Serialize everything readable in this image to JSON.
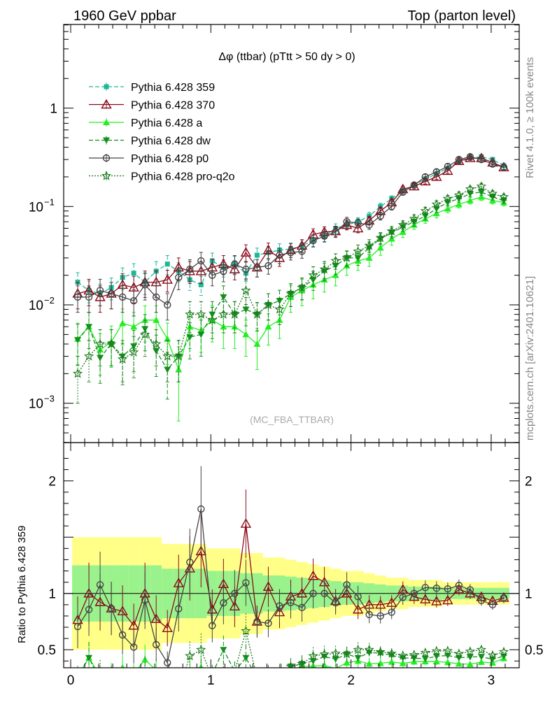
{
  "header": {
    "left": "1960 GeV ppbar",
    "right": "Top (parton level)"
  },
  "side": {
    "rivet": "Rivet 4.1.0, ≥ 100k events",
    "mcplots": "mcplots.cern.ch [arXiv:2401.10621]"
  },
  "chart_data": {
    "type": "line",
    "title": "Δφ (ttbar) (pTtt > 50 dy > 0)",
    "watermark": "(MC_FBA_TTBAR)",
    "xlabel": "",
    "ylabel_main": "",
    "ylabel_ratio": "Ratio to Pythia 6.428 359",
    "xlim": [
      -0.05,
      3.2
    ],
    "ylim_main_log10": [
      -3.4,
      0.85
    ],
    "ylim_ratio": [
      0.34,
      2.34
    ],
    "x_ticks": [
      {
        "v": 0,
        "label": "0"
      },
      {
        "v": 1,
        "label": "1"
      },
      {
        "v": 2,
        "label": "2"
      },
      {
        "v": 3,
        "label": "3"
      }
    ],
    "y_ticks_main": [
      {
        "v": -3,
        "base": "10",
        "exp": "−3"
      },
      {
        "v": -2,
        "base": "10",
        "exp": "−2"
      },
      {
        "v": -1,
        "base": "10",
        "exp": "−1"
      },
      {
        "v": 0,
        "base": "1",
        "exp": ""
      }
    ],
    "y_ticks_ratio": [
      {
        "v": 0.5,
        "label": "0.5"
      },
      {
        "v": 1,
        "label": "1"
      },
      {
        "v": 2,
        "label": "2"
      }
    ],
    "x": [
      0.05,
      0.13,
      0.21,
      0.29,
      0.37,
      0.45,
      0.53,
      0.61,
      0.69,
      0.77,
      0.85,
      0.93,
      1.01,
      1.09,
      1.17,
      1.25,
      1.33,
      1.41,
      1.49,
      1.57,
      1.65,
      1.73,
      1.81,
      1.89,
      1.97,
      2.05,
      2.13,
      2.21,
      2.29,
      2.37,
      2.45,
      2.53,
      2.61,
      2.69,
      2.77,
      2.85,
      2.93,
      3.01,
      3.09
    ],
    "series": [
      {
        "name": "Pythia 6.428 359",
        "color": "#1ab899",
        "marker": "square",
        "dash": "6,3",
        "values": [
          0.017,
          0.014,
          0.013,
          0.015,
          0.019,
          0.021,
          0.017,
          0.022,
          0.026,
          0.022,
          0.018,
          0.016,
          0.028,
          0.024,
          0.026,
          0.021,
          0.032,
          0.034,
          0.036,
          0.037,
          0.04,
          0.045,
          0.05,
          0.06,
          0.065,
          0.07,
          0.08,
          0.1,
          0.12,
          0.145,
          0.165,
          0.19,
          0.215,
          0.245,
          0.28,
          0.31,
          0.32,
          0.3,
          0.26
        ],
        "err": [
          0.25,
          0.25,
          0.25,
          0.25,
          0.25,
          0.25,
          0.25,
          0.25,
          0.22,
          0.22,
          0.22,
          0.22,
          0.2,
          0.2,
          0.2,
          0.18,
          0.18,
          0.16,
          0.16,
          0.15,
          0.14,
          0.13,
          0.12,
          0.11,
          0.1,
          0.1,
          0.09,
          0.08,
          0.07,
          0.07,
          0.06,
          0.06,
          0.06,
          0.05,
          0.05,
          0.05,
          0.05,
          0.05,
          0.05
        ]
      },
      {
        "name": "Pythia 6.428 370",
        "color": "#8b0a1a",
        "marker": "triangle-open",
        "dash": "",
        "values": [
          0.013,
          0.014,
          0.012,
          0.013,
          0.016,
          0.015,
          0.017,
          0.017,
          0.018,
          0.024,
          0.022,
          0.022,
          0.024,
          0.026,
          0.023,
          0.034,
          0.024,
          0.036,
          0.03,
          0.036,
          0.04,
          0.052,
          0.055,
          0.056,
          0.065,
          0.06,
          0.072,
          0.09,
          0.11,
          0.15,
          0.16,
          0.18,
          0.2,
          0.23,
          0.29,
          0.31,
          0.31,
          0.28,
          0.25
        ],
        "err": [
          0.3,
          0.3,
          0.3,
          0.3,
          0.3,
          0.3,
          0.3,
          0.3,
          0.25,
          0.25,
          0.25,
          0.25,
          0.22,
          0.22,
          0.22,
          0.2,
          0.2,
          0.18,
          0.18,
          0.16,
          0.15,
          0.14,
          0.13,
          0.12,
          0.11,
          0.1,
          0.1,
          0.09,
          0.08,
          0.07,
          0.07,
          0.06,
          0.06,
          0.06,
          0.05,
          0.05,
          0.05,
          0.05,
          0.05
        ]
      },
      {
        "name": "Pythia 6.428 a",
        "color": "#22ee22",
        "marker": "triangle",
        "dash": "",
        "values": [
          0.0045,
          0.006,
          0.0035,
          0.0042,
          0.0065,
          0.006,
          0.007,
          0.007,
          0.0045,
          0.0022,
          0.006,
          0.0055,
          0.007,
          0.006,
          0.006,
          0.005,
          0.004,
          0.006,
          0.007,
          0.012,
          0.014,
          0.016,
          0.018,
          0.02,
          0.025,
          0.028,
          0.03,
          0.038,
          0.047,
          0.055,
          0.065,
          0.075,
          0.085,
          0.095,
          0.105,
          0.115,
          0.125,
          0.115,
          0.11
        ],
        "err": [
          0.45,
          0.4,
          0.45,
          0.45,
          0.4,
          0.4,
          0.4,
          0.4,
          0.45,
          0.7,
          0.4,
          0.4,
          0.4,
          0.4,
          0.4,
          0.4,
          0.45,
          0.35,
          0.35,
          0.3,
          0.3,
          0.28,
          0.25,
          0.22,
          0.2,
          0.2,
          0.18,
          0.16,
          0.14,
          0.12,
          0.1,
          0.1,
          0.1,
          0.09,
          0.08,
          0.08,
          0.08,
          0.08,
          0.08
        ]
      },
      {
        "name": "Pythia 6.428 dw",
        "color": "#12901e",
        "marker": "triangle-down",
        "dash": "6,3",
        "values": [
          0.0044,
          0.006,
          0.0029,
          0.004,
          0.003,
          0.0038,
          0.0057,
          0.0034,
          0.0022,
          0.003,
          0.0047,
          0.005,
          0.008,
          0.012,
          0.008,
          0.009,
          0.008,
          0.01,
          0.011,
          0.013,
          0.015,
          0.018,
          0.022,
          0.025,
          0.03,
          0.03,
          0.038,
          0.047,
          0.054,
          0.062,
          0.07,
          0.08,
          0.095,
          0.11,
          0.12,
          0.135,
          0.14,
          0.125,
          0.115
        ],
        "err": [
          0.45,
          0.4,
          0.45,
          0.4,
          0.45,
          0.45,
          0.4,
          0.45,
          0.5,
          0.45,
          0.4,
          0.4,
          0.35,
          0.3,
          0.35,
          0.32,
          0.32,
          0.3,
          0.28,
          0.26,
          0.25,
          0.22,
          0.2,
          0.19,
          0.18,
          0.16,
          0.15,
          0.13,
          0.12,
          0.1,
          0.1,
          0.09,
          0.09,
          0.08,
          0.08,
          0.07,
          0.07,
          0.07,
          0.07
        ]
      },
      {
        "name": "Pythia 6.428 p0",
        "color": "#444444",
        "marker": "circle-open",
        "dash": "",
        "values": [
          0.012,
          0.012,
          0.014,
          0.013,
          0.012,
          0.011,
          0.016,
          0.012,
          0.01,
          0.019,
          0.023,
          0.028,
          0.02,
          0.022,
          0.026,
          0.023,
          0.024,
          0.025,
          0.032,
          0.034,
          0.035,
          0.045,
          0.05,
          0.055,
          0.07,
          0.068,
          0.065,
          0.08,
          0.1,
          0.14,
          0.165,
          0.2,
          0.225,
          0.255,
          0.3,
          0.32,
          0.3,
          0.27,
          0.25
        ],
        "err": [
          0.3,
          0.3,
          0.3,
          0.3,
          0.3,
          0.3,
          0.3,
          0.3,
          0.3,
          0.25,
          0.25,
          0.22,
          0.22,
          0.22,
          0.22,
          0.2,
          0.2,
          0.18,
          0.18,
          0.16,
          0.15,
          0.14,
          0.13,
          0.12,
          0.11,
          0.1,
          0.1,
          0.09,
          0.08,
          0.07,
          0.07,
          0.06,
          0.06,
          0.06,
          0.05,
          0.05,
          0.05,
          0.05,
          0.05
        ]
      },
      {
        "name": "Pythia 6.428 pro-q2o",
        "color": "#1a7a1a",
        "marker": "star",
        "dash": "2,2",
        "values": [
          0.002,
          0.003,
          0.004,
          0.004,
          0.0028,
          0.0033,
          0.005,
          0.004,
          0.003,
          0.003,
          0.008,
          0.008,
          0.007,
          0.008,
          0.008,
          0.014,
          0.008,
          0.01,
          0.009,
          0.013,
          0.015,
          0.02,
          0.023,
          0.028,
          0.03,
          0.035,
          0.04,
          0.048,
          0.056,
          0.065,
          0.075,
          0.09,
          0.105,
          0.12,
          0.13,
          0.15,
          0.16,
          0.135,
          0.125
        ],
        "err": [
          0.5,
          0.45,
          0.4,
          0.4,
          0.45,
          0.45,
          0.4,
          0.4,
          0.45,
          0.45,
          0.35,
          0.35,
          0.35,
          0.35,
          0.35,
          0.28,
          0.32,
          0.3,
          0.3,
          0.26,
          0.25,
          0.22,
          0.2,
          0.18,
          0.17,
          0.16,
          0.15,
          0.13,
          0.12,
          0.1,
          0.1,
          0.09,
          0.09,
          0.08,
          0.08,
          0.07,
          0.07,
          0.07,
          0.07
        ]
      }
    ]
  }
}
